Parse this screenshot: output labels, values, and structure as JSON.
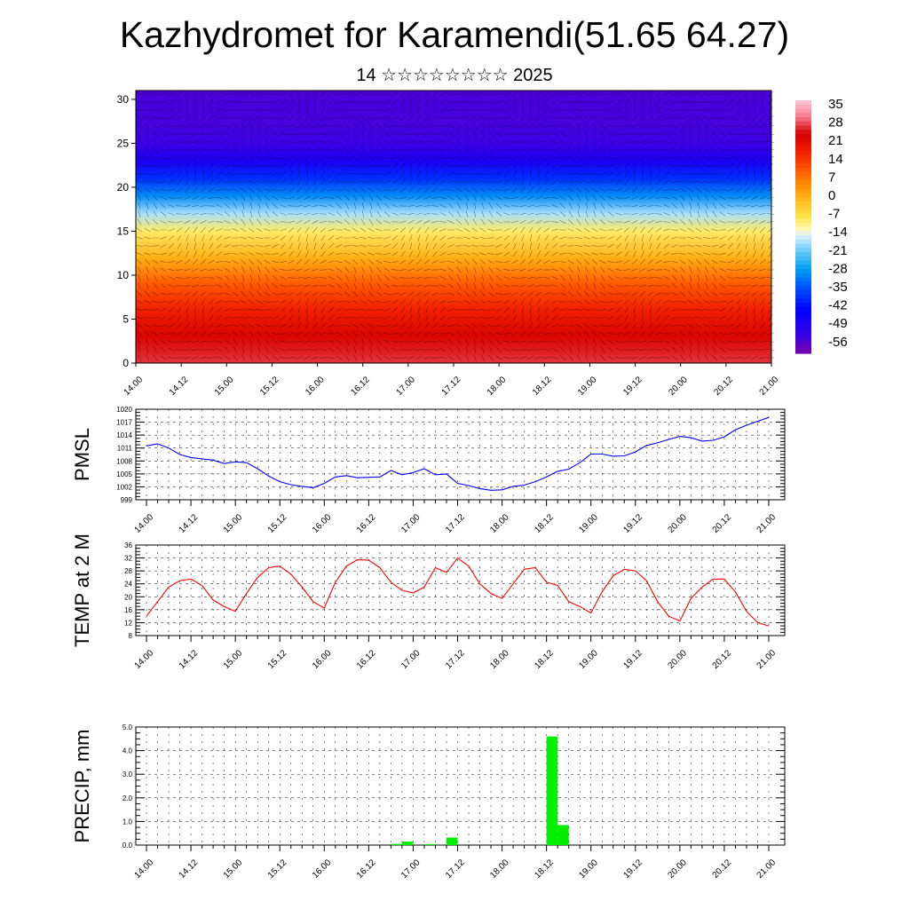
{
  "header": {
    "title": "Kazhydromet for Karamendi(51.65 64.27)",
    "subtitle": "14 ☆☆☆☆☆☆☆☆ 2025"
  },
  "x_time_labels": [
    "14.00",
    "14.12",
    "15.00",
    "15.12",
    "16.00",
    "16.12",
    "17.00",
    "17.12",
    "18.00",
    "18.12",
    "19.00",
    "19.12",
    "20.00",
    "20.12",
    "21.00"
  ],
  "chart_data": [
    {
      "type": "heatmap",
      "title": "",
      "xlabel": "",
      "ylabel": "",
      "x": [
        "14.00",
        "14.12",
        "15.00",
        "15.12",
        "16.00",
        "16.12",
        "17.00",
        "17.12",
        "18.00",
        "18.12",
        "19.00",
        "19.12",
        "20.00",
        "20.12",
        "21.00"
      ],
      "y_ticks": [
        "0",
        "5",
        "10",
        "15",
        "20",
        "25",
        "30"
      ],
      "ylim": [
        0,
        31
      ],
      "colorbar_labels": [
        "35",
        "28",
        "21",
        "14",
        "7",
        "0",
        "-7",
        "-14",
        "-21",
        "-28",
        "-35",
        "-42",
        "-49",
        "-56"
      ],
      "zlim": [
        -63,
        42
      ],
      "profile": {
        "heights": [
          0,
          3,
          6,
          9,
          12,
          15,
          17,
          19,
          21,
          23,
          25,
          27,
          29,
          31
        ],
        "temps": [
          31,
          27,
          21,
          13,
          2,
          -8,
          -17,
          -30,
          -40,
          -50,
          -56,
          -57,
          -57,
          -58
        ]
      }
    },
    {
      "type": "line",
      "ylabel": "PMSL",
      "y_ticks": [
        "999",
        "1002",
        "1005",
        "1008",
        "1011",
        "1014",
        "1017",
        "1020"
      ],
      "ylim": [
        999,
        1020
      ],
      "x": [
        0,
        3,
        6,
        9,
        12,
        15,
        18,
        21,
        24,
        27,
        30,
        33,
        36,
        39,
        42,
        45,
        48,
        51,
        54,
        57,
        60,
        63,
        66,
        69,
        72,
        75,
        78,
        81,
        84,
        87,
        90,
        93,
        96,
        99,
        102,
        105,
        108,
        111,
        114,
        117,
        120,
        123,
        126,
        129,
        132,
        135,
        138,
        141,
        144,
        147,
        150,
        153,
        156,
        159,
        162,
        165,
        168
      ],
      "values": [
        1011.5,
        1012,
        1011,
        1009.5,
        1008.8,
        1008.5,
        1008.2,
        1007.4,
        1007.8,
        1007.6,
        1006.2,
        1004.5,
        1003.2,
        1002.5,
        1002.1,
        1001.8,
        1002.8,
        1004.3,
        1004.6,
        1004.1,
        1004.2,
        1004.3,
        1005.8,
        1004.8,
        1005.3,
        1006.2,
        1004.8,
        1005,
        1002.8,
        1002.3,
        1001.6,
        1001.2,
        1001.3,
        1002.1,
        1002.4,
        1003.2,
        1004.3,
        1005.6,
        1006.1,
        1007.6,
        1009.6,
        1009.6,
        1009.1,
        1009.2,
        1010.1,
        1011.6,
        1012.2,
        1013,
        1013.7,
        1013.4,
        1012.6,
        1012.8,
        1013.6,
        1015.2,
        1016.3,
        1017.2,
        1018.1
      ],
      "color": "#0000ff"
    },
    {
      "type": "line",
      "ylabel": "TEMP at 2 M",
      "y_ticks": [
        "8",
        "12",
        "16",
        "20",
        "24",
        "28",
        "32",
        "36"
      ],
      "ylim": [
        8,
        36
      ],
      "x": [
        0,
        3,
        6,
        9,
        12,
        15,
        18,
        21,
        24,
        27,
        30,
        33,
        36,
        39,
        42,
        45,
        48,
        51,
        54,
        57,
        60,
        63,
        66,
        69,
        72,
        75,
        78,
        81,
        84,
        87,
        90,
        93,
        96,
        99,
        102,
        105,
        108,
        111,
        114,
        117,
        120,
        123,
        126,
        129,
        132,
        135,
        138,
        141,
        144,
        147,
        150,
        153,
        156,
        159,
        162,
        165,
        168
      ],
      "values": [
        14,
        18.5,
        23,
        25,
        25.5,
        23.5,
        19,
        17,
        15.5,
        21,
        26,
        29,
        29.5,
        27,
        23,
        18.5,
        16.5,
        24.5,
        29.5,
        31.5,
        31.3,
        29,
        24.5,
        22,
        21.2,
        23,
        29,
        27.5,
        32,
        29.5,
        24,
        21,
        19.5,
        24,
        28.5,
        29,
        24.5,
        23.5,
        18.5,
        17,
        15,
        21.5,
        26.5,
        28.5,
        28,
        25,
        18.5,
        14,
        12.5,
        19.5,
        23,
        25.5,
        25.5,
        21.5,
        15.5,
        12,
        11
      ],
      "color": "#ff0000"
    },
    {
      "type": "bar",
      "ylabel": "PRECIP, mm",
      "y_ticks": [
        "0.0",
        "1.0",
        "2.0",
        "3.0",
        "4.0",
        "5.0"
      ],
      "ylim": [
        0,
        5
      ],
      "bars": [
        {
          "t": 66,
          "value": 0.05
        },
        {
          "t": 69,
          "value": 0.15
        },
        {
          "t": 75,
          "value": 0.04
        },
        {
          "t": 81,
          "value": 0.32
        },
        {
          "t": 108,
          "value": 4.6
        },
        {
          "t": 111,
          "value": 0.85
        }
      ],
      "color": "#00ee00"
    }
  ]
}
